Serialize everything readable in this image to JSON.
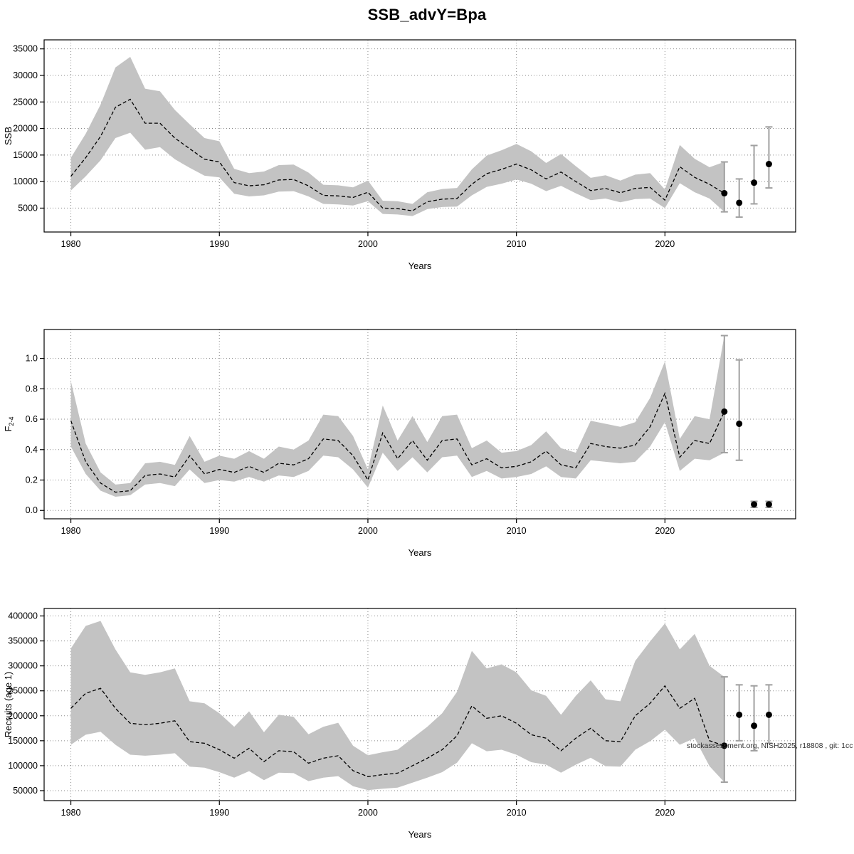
{
  "title": "SSB_advY=Bpa",
  "watermark": "stockassessment.org, NISH2025, r18808 , git: 1cc",
  "colors": {
    "band": "#c3c3c3",
    "line": "#000000",
    "errorbar": "#a0a0a0",
    "grid": "#8a8a8a"
  },
  "chart_data": [
    {
      "type": "area",
      "name": "SSB",
      "ylabel": "SSB",
      "xlabel": "Years",
      "xlim": [
        1978.2,
        2028.8
      ],
      "ylim": [
        500,
        36700
      ],
      "xticks": [
        1980,
        1990,
        2000,
        2010,
        2020
      ],
      "xtick_labels": [
        "1980",
        "1990",
        "2000",
        "2010",
        "2020"
      ],
      "yticks": [
        5000,
        10000,
        15000,
        20000,
        25000,
        30000,
        35000
      ],
      "ytick_labels": [
        "5000",
        "10000",
        "15000",
        "20000",
        "25000",
        "30000",
        "35000"
      ],
      "x": [
        1980,
        1981,
        1982,
        1983,
        1984,
        1985,
        1986,
        1987,
        1988,
        1989,
        1990,
        1991,
        1992,
        1993,
        1994,
        1995,
        1996,
        1997,
        1998,
        1999,
        2000,
        2001,
        2002,
        2003,
        2004,
        2005,
        2006,
        2007,
        2008,
        2009,
        2010,
        2011,
        2012,
        2013,
        2014,
        2015,
        2016,
        2017,
        2018,
        2019,
        2020,
        2021,
        2022,
        2023,
        2024
      ],
      "median": [
        11000,
        14500,
        18500,
        24000,
        25500,
        21000,
        21000,
        18200,
        16200,
        14200,
        13700,
        9800,
        9200,
        9400,
        10300,
        10400,
        9200,
        7400,
        7300,
        7000,
        8000,
        5000,
        4900,
        4500,
        6200,
        6700,
        6800,
        9500,
        11500,
        12300,
        13300,
        12200,
        10500,
        11800,
        10000,
        8300,
        8700,
        7900,
        8700,
        8900,
        6500,
        12800,
        10800,
        9500,
        7800
      ],
      "lower": [
        8300,
        11000,
        14000,
        18200,
        19200,
        16000,
        16500,
        14200,
        12600,
        11100,
        10800,
        7700,
        7200,
        7400,
        8100,
        8200,
        7200,
        5800,
        5700,
        5500,
        6300,
        3900,
        3800,
        3500,
        4800,
        5200,
        5300,
        7400,
        9000,
        9600,
        10400,
        9600,
        8200,
        9200,
        7800,
        6500,
        6800,
        6100,
        6700,
        6800,
        5000,
        9700,
        8000,
        6800,
        4300
      ],
      "upper": [
        14500,
        19000,
        24500,
        31500,
        33500,
        27500,
        27000,
        23500,
        20800,
        18200,
        17600,
        12400,
        11600,
        11900,
        13100,
        13200,
        11700,
        9400,
        9300,
        8900,
        10200,
        6400,
        6300,
        5800,
        8000,
        8600,
        8800,
        12300,
        14900,
        15900,
        17100,
        15700,
        13500,
        15200,
        12900,
        10700,
        11200,
        10200,
        11300,
        11600,
        8500,
        16900,
        14300,
        12700,
        13700
      ],
      "forecast": [
        {
          "x": 2024,
          "y": 7800,
          "lo": 4300,
          "hi": 13700
        },
        {
          "x": 2025,
          "y": 6000,
          "lo": 3300,
          "hi": 10500
        },
        {
          "x": 2026,
          "y": 9800,
          "lo": 5800,
          "hi": 16800
        },
        {
          "x": 2027,
          "y": 13300,
          "lo": 8800,
          "hi": 20300
        }
      ]
    },
    {
      "type": "area",
      "name": "F2-4",
      "ylabel": "F",
      "ylabel_sub": "2-4",
      "xlabel": "Years",
      "xlim": [
        1978.2,
        2028.8
      ],
      "ylim": [
        -0.055,
        1.19
      ],
      "xticks": [
        1980,
        1990,
        2000,
        2010,
        2020
      ],
      "xtick_labels": [
        "1980",
        "1990",
        "2000",
        "2010",
        "2020"
      ],
      "yticks": [
        0.0,
        0.2,
        0.4,
        0.6,
        0.8,
        1.0
      ],
      "ytick_labels": [
        "0.0",
        "0.2",
        "0.4",
        "0.6",
        "0.8",
        "1.0"
      ],
      "x": [
        1980,
        1981,
        1982,
        1983,
        1984,
        1985,
        1986,
        1987,
        1988,
        1989,
        1990,
        1991,
        1992,
        1993,
        1994,
        1995,
        1996,
        1997,
        1998,
        1999,
        2000,
        2001,
        2002,
        2003,
        2004,
        2005,
        2006,
        2007,
        2008,
        2009,
        2010,
        2011,
        2012,
        2013,
        2014,
        2015,
        2016,
        2017,
        2018,
        2019,
        2020,
        2021,
        2022,
        2023,
        2024
      ],
      "median": [
        0.59,
        0.32,
        0.18,
        0.12,
        0.13,
        0.23,
        0.24,
        0.22,
        0.36,
        0.24,
        0.27,
        0.25,
        0.29,
        0.25,
        0.31,
        0.3,
        0.34,
        0.47,
        0.46,
        0.36,
        0.2,
        0.51,
        0.34,
        0.46,
        0.33,
        0.46,
        0.47,
        0.3,
        0.34,
        0.28,
        0.29,
        0.32,
        0.39,
        0.3,
        0.28,
        0.44,
        0.42,
        0.41,
        0.43,
        0.55,
        0.77,
        0.35,
        0.46,
        0.44,
        0.65
      ],
      "lower": [
        0.42,
        0.24,
        0.13,
        0.09,
        0.1,
        0.17,
        0.18,
        0.16,
        0.27,
        0.18,
        0.2,
        0.19,
        0.22,
        0.19,
        0.23,
        0.22,
        0.26,
        0.36,
        0.35,
        0.27,
        0.15,
        0.38,
        0.26,
        0.35,
        0.25,
        0.35,
        0.36,
        0.22,
        0.26,
        0.21,
        0.22,
        0.24,
        0.29,
        0.22,
        0.21,
        0.33,
        0.32,
        0.31,
        0.32,
        0.42,
        0.58,
        0.26,
        0.34,
        0.33,
        0.38
      ],
      "upper": [
        0.85,
        0.44,
        0.25,
        0.17,
        0.18,
        0.31,
        0.32,
        0.3,
        0.49,
        0.32,
        0.36,
        0.34,
        0.39,
        0.34,
        0.42,
        0.4,
        0.46,
        0.63,
        0.62,
        0.49,
        0.27,
        0.69,
        0.46,
        0.62,
        0.45,
        0.62,
        0.63,
        0.41,
        0.46,
        0.38,
        0.39,
        0.43,
        0.52,
        0.41,
        0.38,
        0.59,
        0.57,
        0.55,
        0.58,
        0.74,
        0.98,
        0.47,
        0.62,
        0.6,
        1.15
      ],
      "forecast": [
        {
          "x": 2024,
          "y": 0.65,
          "lo": 0.38,
          "hi": 1.15
        },
        {
          "x": 2025,
          "y": 0.57,
          "lo": 0.33,
          "hi": 0.99
        },
        {
          "x": 2026,
          "y": 0.04,
          "lo": 0.02,
          "hi": 0.06
        },
        {
          "x": 2027,
          "y": 0.04,
          "lo": 0.02,
          "hi": 0.06
        }
      ]
    },
    {
      "type": "area",
      "name": "Recruits (age 1)",
      "ylabel": "Recruits (age 1)",
      "xlabel": "Years",
      "xlim": [
        1978.2,
        2028.8
      ],
      "ylim": [
        30000,
        415000
      ],
      "xticks": [
        1980,
        1990,
        2000,
        2010,
        2020
      ],
      "xtick_labels": [
        "1980",
        "1990",
        "2000",
        "2010",
        "2020"
      ],
      "yticks": [
        50000,
        100000,
        150000,
        200000,
        250000,
        300000,
        350000,
        400000
      ],
      "ytick_labels": [
        "50000",
        "100000",
        "150000",
        "200000",
        "250000",
        "300000",
        "350000",
        "400000"
      ],
      "x": [
        1980,
        1981,
        1982,
        1983,
        1984,
        1985,
        1986,
        1987,
        1988,
        1989,
        1990,
        1991,
        1992,
        1993,
        1994,
        1995,
        1996,
        1997,
        1998,
        1999,
        2000,
        2001,
        2002,
        2003,
        2004,
        2005,
        2006,
        2007,
        2008,
        2009,
        2010,
        2011,
        2012,
        2013,
        2014,
        2015,
        2016,
        2017,
        2018,
        2019,
        2020,
        2021,
        2022,
        2023,
        2024
      ],
      "median": [
        215000,
        245000,
        255000,
        215000,
        185000,
        182000,
        185000,
        190000,
        148000,
        145000,
        132000,
        115000,
        135000,
        108000,
        130000,
        128000,
        105000,
        115000,
        120000,
        90000,
        78000,
        82000,
        85000,
        100000,
        115000,
        132000,
        160000,
        220000,
        195000,
        200000,
        185000,
        162000,
        155000,
        130000,
        155000,
        175000,
        150000,
        148000,
        200000,
        225000,
        260000,
        215000,
        235000,
        150000,
        140000
      ],
      "lower": [
        142000,
        162000,
        168000,
        142000,
        122000,
        120000,
        122000,
        125000,
        98000,
        96000,
        87000,
        76000,
        89000,
        71000,
        86000,
        85000,
        69000,
        76000,
        79000,
        59000,
        51000,
        54000,
        56000,
        66000,
        76000,
        87000,
        106000,
        145000,
        129000,
        132000,
        122000,
        107000,
        102000,
        86000,
        102000,
        116000,
        99000,
        98000,
        132000,
        149000,
        172000,
        142000,
        155000,
        99000,
        67000
      ],
      "upper": [
        335000,
        380000,
        390000,
        333000,
        287000,
        282000,
        287000,
        295000,
        229000,
        225000,
        205000,
        178000,
        209000,
        167000,
        202000,
        198000,
        163000,
        178000,
        186000,
        140000,
        121000,
        127000,
        132000,
        155000,
        178000,
        205000,
        248000,
        330000,
        295000,
        303000,
        287000,
        251000,
        240000,
        202000,
        240000,
        271000,
        233000,
        229000,
        310000,
        349000,
        385000,
        333000,
        364000,
        300000,
        278000
      ],
      "forecast": [
        {
          "x": 2024,
          "y": 140000,
          "lo": 67000,
          "hi": 278000
        },
        {
          "x": 2025,
          "y": 202000,
          "lo": 150000,
          "hi": 262000
        },
        {
          "x": 2026,
          "y": 180000,
          "lo": 130000,
          "hi": 260000
        },
        {
          "x": 2027,
          "y": 202000,
          "lo": 145000,
          "hi": 262000
        }
      ]
    }
  ]
}
